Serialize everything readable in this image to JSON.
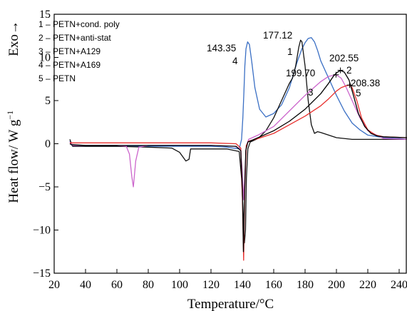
{
  "chart_data": {
    "type": "line",
    "xlabel": "Temperature/°C",
    "ylabel_prefix": "Heat flow/ W g",
    "ylabel_superscript": "−1",
    "exo_label": "Exo→",
    "xlim": [
      20,
      245
    ],
    "ylim": [
      -15,
      15
    ],
    "x_ticks": [
      20,
      40,
      60,
      80,
      100,
      120,
      140,
      160,
      180,
      200,
      220,
      240
    ],
    "y_ticks": [
      -15,
      -10,
      -5,
      0,
      5,
      10,
      15
    ],
    "y_tick_labels": [
      "−15",
      "−10",
      "−5",
      "0",
      "5",
      "10",
      "15"
    ],
    "grid": false,
    "legend_position": "top-left",
    "legend": [
      "1 – PETN+cond. poly",
      "2 – PETN+anti-stat",
      "3 – PETN+A129",
      "4 – PETN+A169",
      "5 – PETN"
    ],
    "series": [
      {
        "id": "4",
        "color": "#3a6fc4",
        "x": [
          30,
          31,
          31.8,
          40,
          60,
          80,
          100,
          120,
          130,
          138,
          139.5,
          140.3,
          141,
          141.6,
          142.3,
          143.35,
          144.5,
          146,
          148,
          151,
          155,
          160,
          165,
          170,
          175,
          178,
          180,
          182,
          184,
          186,
          188,
          190,
          195,
          200,
          205,
          210,
          215,
          220,
          230,
          240,
          245
        ],
        "y": [
          0.3,
          -0.1,
          -0.3,
          -0.3,
          -0.3,
          -0.3,
          -0.3,
          -0.3,
          -0.4,
          -0.6,
          0.5,
          3,
          6,
          9,
          11,
          11.8,
          11.5,
          9.5,
          6.5,
          4,
          3.1,
          3.5,
          4.5,
          6.5,
          9.5,
          11,
          11.7,
          12.2,
          12.3,
          11.8,
          10.8,
          9.6,
          7.6,
          5.6,
          3.8,
          2.4,
          1.6,
          1.0,
          0.7,
          0.6,
          0.5
        ]
      },
      {
        "id": "1",
        "color": "#111111",
        "x": [
          30,
          31,
          31.8,
          40,
          60,
          80,
          95,
          100,
          104,
          106,
          107,
          115,
          130,
          138,
          139.5,
          140.5,
          141.3,
          142,
          142.6,
          143.5,
          145,
          150,
          155,
          160,
          165,
          168,
          170,
          172,
          174,
          176,
          177.12,
          178,
          180,
          182,
          184,
          186,
          188,
          190,
          195,
          200,
          210,
          220,
          245
        ],
        "y": [
          0.5,
          0.0,
          -0.3,
          -0.3,
          -0.3,
          -0.4,
          -0.5,
          -1.0,
          -2.0,
          -1.8,
          -0.6,
          -0.6,
          -0.6,
          -0.9,
          -4,
          -8,
          -11.5,
          -10,
          -4,
          -0.6,
          0.2,
          0.6,
          1.5,
          3,
          5,
          6.2,
          7.0,
          7.6,
          9.0,
          11.2,
          12.0,
          11.8,
          9,
          5,
          2.2,
          1.2,
          1.4,
          1.3,
          1.0,
          0.7,
          0.5,
          0.5,
          0.5
        ]
      },
      {
        "id": "3",
        "color": "#cc66cc",
        "x": [
          30,
          31,
          32,
          40,
          60,
          66,
          68,
          69.5,
          70.5,
          72,
          74,
          80,
          100,
          120,
          135,
          139,
          140,
          140.8,
          141.6,
          142.5,
          144,
          150,
          160,
          170,
          180,
          190,
          195,
          199.7,
          203,
          206,
          210,
          215,
          220,
          230,
          245
        ],
        "y": [
          0.2,
          0.0,
          -0.2,
          -0.2,
          -0.2,
          -0.3,
          -1.2,
          -3.8,
          -5.0,
          -2.0,
          -0.4,
          -0.2,
          -0.2,
          -0.2,
          -0.3,
          -0.6,
          -3.5,
          -6.5,
          -3.5,
          -0.3,
          0.5,
          1.0,
          2.0,
          3.8,
          5.6,
          7.2,
          7.8,
          8.0,
          7.6,
          6.6,
          5,
          3,
          1.5,
          0.6,
          0.5
        ]
      },
      {
        "id": "5",
        "color": "#e8302e",
        "x": [
          30,
          31,
          40,
          80,
          120,
          136,
          139,
          140,
          140.8,
          141.6,
          142.5,
          144,
          150,
          160,
          170,
          180,
          190,
          195,
          200,
          203,
          206,
          208.38,
          210,
          213,
          216,
          220,
          225,
          230,
          245
        ],
        "y": [
          0.1,
          0.1,
          0.1,
          0.1,
          0.1,
          0.0,
          -0.5,
          -6,
          -13.5,
          -5,
          -0.2,
          0.3,
          0.6,
          1.2,
          2.2,
          3.2,
          4.4,
          5.2,
          6.1,
          6.5,
          6.7,
          6.8,
          6.5,
          5,
          3,
          1.6,
          1.0,
          0.8,
          0.7
        ]
      },
      {
        "id": "2",
        "color": "#000000",
        "x": [
          30,
          31,
          40,
          80,
          120,
          136,
          139,
          140,
          140.7,
          141.4,
          142.2,
          143.5,
          150,
          160,
          170,
          180,
          190,
          195,
          198,
          200,
          202.55,
          205,
          208,
          211,
          214,
          218,
          222,
          226,
          230,
          245
        ],
        "y": [
          0.0,
          -0.1,
          -0.2,
          -0.2,
          -0.2,
          -0.3,
          -0.8,
          -5,
          -12.5,
          -6,
          -0.8,
          0.2,
          0.7,
          1.5,
          2.6,
          4.0,
          5.8,
          7.0,
          7.8,
          8.2,
          8.5,
          8.3,
          7.4,
          5.5,
          3.5,
          2.0,
          1.2,
          0.9,
          0.8,
          0.7
        ]
      }
    ],
    "peak_labels": [
      {
        "text": "143.35",
        "x": 143.35,
        "y": 11.8
      },
      {
        "text": "177.12",
        "x": 177.12,
        "y": 12.0
      },
      {
        "text": "202.55",
        "x": 202.55,
        "y": 8.5
      },
      {
        "text": "199.70",
        "x": 199.7,
        "y": 8.0
      },
      {
        "text": "208.38",
        "x": 208.38,
        "y": 6.8
      }
    ],
    "curve_numbers": [
      "4",
      "1",
      "2",
      "3",
      "5"
    ]
  }
}
